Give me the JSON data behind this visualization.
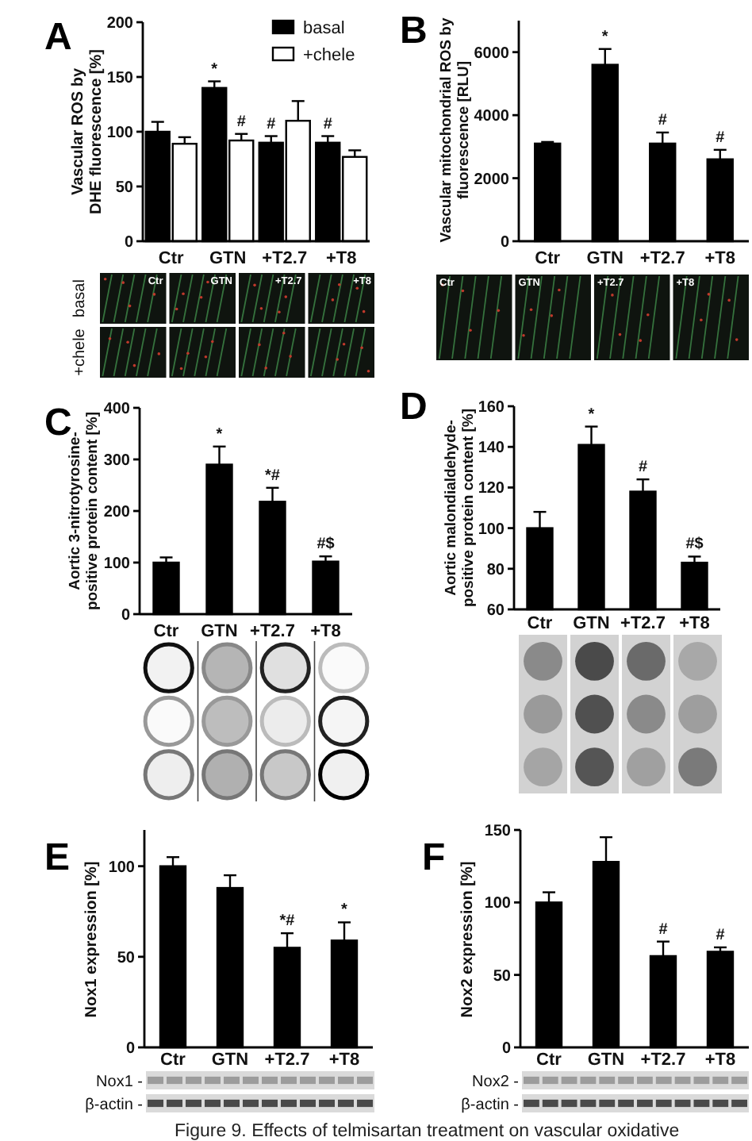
{
  "chart_data": [
    {
      "type": "bar",
      "title": "A",
      "ylabel": "Vascular ROS by\nDHE fluorescence [%]",
      "categories": [
        "Ctr",
        "GTN",
        "+T2.7",
        "+T8"
      ],
      "series": [
        {
          "name": "basal",
          "color": "#000000",
          "values": [
            100,
            140,
            90,
            90
          ],
          "errors": [
            [
              100,
              109
            ],
            [
              140,
              146
            ],
            [
              90,
              96
            ],
            [
              90,
              96
            ]
          ]
        },
        {
          "name": "+chele",
          "color": "#ffffff",
          "values": [
            89,
            92,
            110,
            77
          ],
          "errors": [
            [
              89,
              95
            ],
            [
              92,
              98
            ],
            [
              110,
              128
            ],
            [
              77,
              83
            ]
          ]
        }
      ],
      "ylim": [
        0,
        200
      ],
      "yticks": [
        0,
        50,
        100,
        150,
        200
      ],
      "legend": "top right",
      "annotations": [
        {
          "text": "*",
          "x": "GTN",
          "y": 140
        },
        {
          "text": "#",
          "x": "GTN",
          "y": 92
        },
        {
          "text": "#",
          "x": "+T2.7",
          "y": 90
        },
        {
          "text": "#",
          "x": "+T8",
          "y": 90
        }
      ]
    },
    {
      "type": "bar",
      "title": "B",
      "ylabel": "Vascular mitochondrial ROS by\nfluorescence [RLU]",
      "categories": [
        "Ctr",
        "GTN",
        "+T2.7",
        "+T8"
      ],
      "values": [
        3100,
        5600,
        3100,
        2600
      ],
      "errors": [
        [
          3100,
          3150
        ],
        [
          5600,
          6100
        ],
        [
          3100,
          3450
        ],
        [
          2600,
          2900
        ]
      ],
      "color": "#000000",
      "ylim": [
        0,
        7000
      ],
      "yticks": [
        0,
        2000,
        4000,
        6000
      ],
      "annotations": [
        {
          "text": "*",
          "x": "GTN",
          "y": 5600
        },
        {
          "text": "#",
          "x": "+T2.7",
          "y": 3100
        },
        {
          "text": "#",
          "x": "+T8",
          "y": 2600
        }
      ]
    },
    {
      "type": "bar",
      "title": "C",
      "ylabel": "Aortic 3-nitrotyrosine-\npositive protein content [%]",
      "categories": [
        "Ctr",
        "GTN",
        "+T2.7",
        "+T8"
      ],
      "values": [
        100,
        290,
        218,
        102
      ],
      "errors": [
        [
          100,
          110
        ],
        [
          290,
          325
        ],
        [
          218,
          245
        ],
        [
          102,
          112
        ]
      ],
      "color": "#000000",
      "ylim": [
        0,
        400
      ],
      "yticks": [
        0,
        100,
        200,
        300,
        400
      ],
      "annotations": [
        {
          "text": "*",
          "x": "GTN",
          "y": 290
        },
        {
          "text": "*#",
          "x": "+T2.7",
          "y": 218
        },
        {
          "text": "#$",
          "x": "+T8",
          "y": 102
        }
      ]
    },
    {
      "type": "bar",
      "title": "D",
      "ylabel": "Aortic malondialdehyde-\npositive protein content [%]",
      "categories": [
        "Ctr",
        "GTN",
        "+T2.7",
        "+T8"
      ],
      "values": [
        100,
        141,
        118,
        83
      ],
      "errors": [
        [
          100,
          108
        ],
        [
          141,
          150
        ],
        [
          118,
          124
        ],
        [
          83,
          86
        ]
      ],
      "color": "#000000",
      "ylim": [
        60,
        160
      ],
      "yticks": [
        60,
        80,
        100,
        120,
        140,
        160
      ],
      "annotations": [
        {
          "text": "*",
          "x": "GTN",
          "y": 141
        },
        {
          "text": "#",
          "x": "+T2.7",
          "y": 118
        },
        {
          "text": "#$",
          "x": "+T8",
          "y": 83
        }
      ]
    },
    {
      "type": "bar",
      "title": "E",
      "ylabel": "Nox1 expression [%]",
      "categories": [
        "Ctr",
        "GTN",
        "+T2.7",
        "+T8"
      ],
      "values": [
        100,
        88,
        55,
        59
      ],
      "errors": [
        [
          100,
          105
        ],
        [
          88,
          95
        ],
        [
          55,
          63
        ],
        [
          59,
          69
        ]
      ],
      "color": "#000000",
      "ylim": [
        0,
        120
      ],
      "yticks": [
        0,
        50,
        100
      ],
      "annotations": [
        {
          "text": "*#",
          "x": "+T2.7",
          "y": 55
        },
        {
          "text": "*",
          "x": "+T8",
          "y": 59
        },
        "Nox1 -",
        "β-actin -"
      ]
    },
    {
      "type": "bar",
      "title": "F",
      "ylabel": "Nox2 expression [%]",
      "categories": [
        "Ctr",
        "GTN",
        "+T2.7",
        "+T8"
      ],
      "values": [
        100,
        128,
        63,
        66
      ],
      "errors": [
        [
          100,
          107
        ],
        [
          128,
          145
        ],
        [
          63,
          73
        ],
        [
          66,
          69
        ]
      ],
      "color": "#000000",
      "ylim": [
        0,
        150
      ],
      "yticks": [
        0,
        50,
        100,
        150
      ],
      "annotations": [
        {
          "text": "#",
          "x": "+T2.7",
          "y": 63
        },
        {
          "text": "#",
          "x": "+T8",
          "y": 66
        },
        "Nox2 -",
        "β-actin -",
        "Figure 9. Effects of telmisartan treatment on vascular oxidative"
      ]
    }
  ]
}
